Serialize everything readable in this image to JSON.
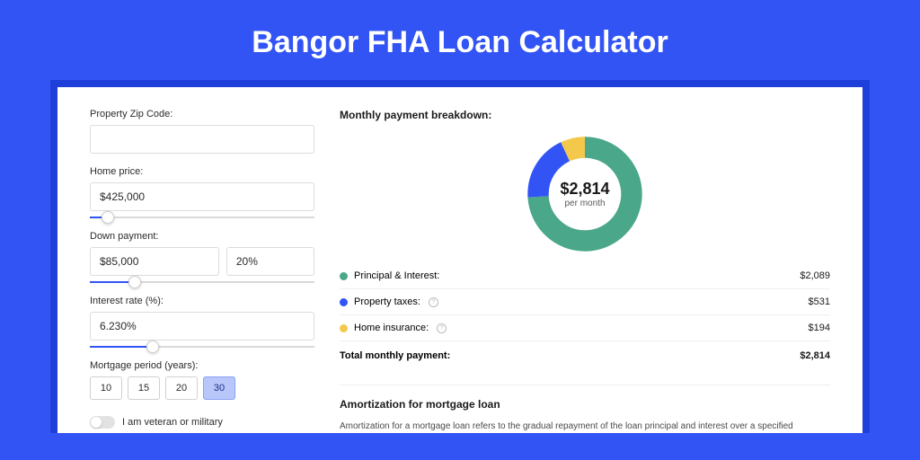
{
  "page": {
    "title": "Bangor FHA Loan Calculator",
    "background_color": "#3254f4",
    "shadow_color": "#1e3fd9",
    "card_color": "#ffffff"
  },
  "form": {
    "zip": {
      "label": "Property Zip Code:",
      "value": ""
    },
    "home_price": {
      "label": "Home price:",
      "value": "$425,000",
      "slider_pct": 8
    },
    "down_payment": {
      "label": "Down payment:",
      "value": "$85,000",
      "pct_value": "20%",
      "slider_pct": 20
    },
    "interest_rate": {
      "label": "Interest rate (%):",
      "value": "6.230%",
      "slider_pct": 28
    },
    "period": {
      "label": "Mortgage period (years):",
      "options": [
        "10",
        "15",
        "20",
        "30"
      ],
      "active_index": 3
    },
    "veteran": {
      "label": "I am veteran or military"
    }
  },
  "breakdown": {
    "title": "Monthly payment breakdown:",
    "center_value": "$2,814",
    "center_sub": "per month",
    "donut": {
      "segments": [
        {
          "key": "pi",
          "pct": 74,
          "color": "#4aa789"
        },
        {
          "key": "tax",
          "pct": 19,
          "color": "#3254f4"
        },
        {
          "key": "ins",
          "pct": 7,
          "color": "#f3c84b"
        }
      ],
      "stroke_width": 18,
      "bg": "#ffffff"
    },
    "rows": [
      {
        "label": "Principal & Interest:",
        "value": "$2,089",
        "color": "#4aa789",
        "info": false
      },
      {
        "label": "Property taxes:",
        "value": "$531",
        "color": "#3254f4",
        "info": true
      },
      {
        "label": "Home insurance:",
        "value": "$194",
        "color": "#f3c84b",
        "info": true
      }
    ],
    "total": {
      "label": "Total monthly payment:",
      "value": "$2,814"
    }
  },
  "amortization": {
    "title": "Amortization for mortgage loan",
    "text": "Amortization for a mortgage loan refers to the gradual repayment of the loan principal and interest over a specified"
  }
}
